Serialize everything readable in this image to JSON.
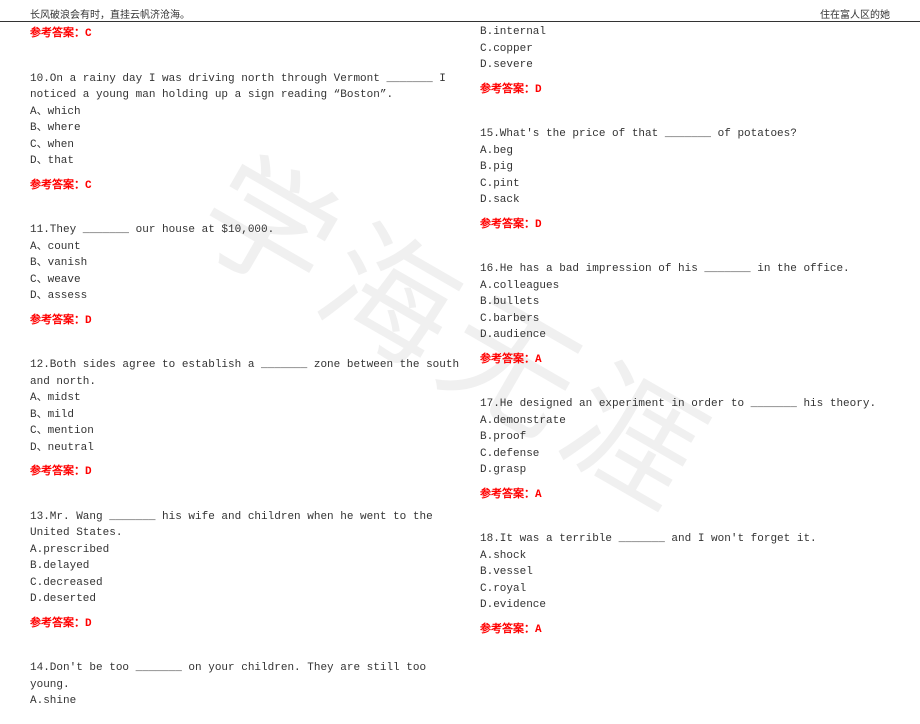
{
  "header": {
    "left": "长风破浪会有时，直挂云帆济沧海。",
    "right": "住在富人区的她"
  },
  "watermark": "学海无涯",
  "answerPrefix": "参考答案：",
  "leftColumn": [
    {
      "type": "answer",
      "value": "C"
    },
    {
      "type": "spacer"
    },
    {
      "type": "question",
      "stem": "10.On a rainy day I was driving north through Vermont _______ I noticed a young man holding up a sign reading “Boston”.",
      "options": [
        "A、which",
        "B、where",
        "C、when",
        "D、that"
      ],
      "answer": "C"
    },
    {
      "type": "spacer"
    },
    {
      "type": "question",
      "stem": "11.They _______ our house at $10,000.",
      "options": [
        "A、count",
        "B、vanish",
        "C、weave",
        "D、assess"
      ],
      "answer": "D"
    },
    {
      "type": "spacer"
    },
    {
      "type": "question",
      "stem": "12.Both sides agree to establish a _______ zone between the south and north.",
      "options": [
        "A、midst",
        "B、mild",
        "C、mention",
        "D、neutral"
      ],
      "answer": "D"
    },
    {
      "type": "spacer"
    },
    {
      "type": "question",
      "stem": "13.Mr. Wang _______ his wife and children when he went to the United States.",
      "options": [
        "A.prescribed",
        "B.delayed",
        "C.decreased",
        "D.deserted"
      ],
      "answer": "D"
    },
    {
      "type": "spacer"
    },
    {
      "type": "partial",
      "stem": "14.Don't be too _______ on your children. They are still too young.",
      "options": [
        "A.shine"
      ]
    }
  ],
  "rightColumn": [
    {
      "type": "options-only",
      "options": [
        "B.internal",
        "C.copper",
        "D.severe"
      ],
      "answer": "D"
    },
    {
      "type": "spacer"
    },
    {
      "type": "question",
      "stem": "15.What's the price of that _______ of potatoes?",
      "options": [
        "A.beg",
        "B.pig",
        "C.pint",
        "D.sack"
      ],
      "answer": "D"
    },
    {
      "type": "spacer"
    },
    {
      "type": "question",
      "stem": "16.He has a bad impression of his _______ in the office.",
      "options": [
        "A.colleagues",
        "B.bullets",
        "C.barbers",
        "D.audience"
      ],
      "answer": "A"
    },
    {
      "type": "spacer"
    },
    {
      "type": "question",
      "stem": "17.He designed an experiment in order to _______ his theory.",
      "options": [
        "A.demonstrate",
        "B.proof",
        "C.defense",
        "D.grasp"
      ],
      "answer": "A"
    },
    {
      "type": "spacer"
    },
    {
      "type": "question",
      "stem": "18.It was a terrible _______ and I won't forget it.",
      "options": [
        "A.shock",
        "B.vessel",
        "C.royal",
        "D.evidence"
      ],
      "answer": "A"
    }
  ]
}
